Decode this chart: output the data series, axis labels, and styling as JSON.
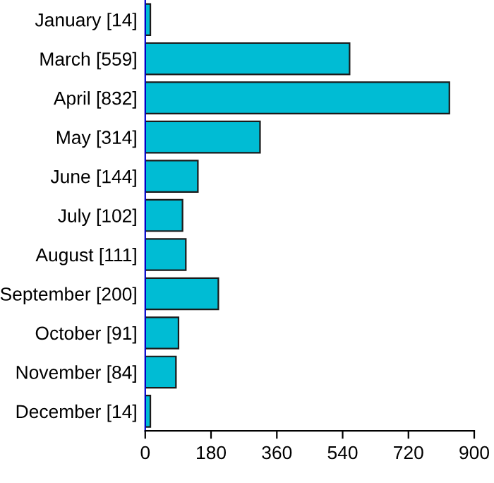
{
  "chart_data": {
    "type": "bar",
    "orientation": "horizontal",
    "categories": [
      "January [14]",
      "March [559]",
      "April [832]",
      "May [314]",
      "June [144]",
      "July [102]",
      "August [111]",
      "September [200]",
      "October [91]",
      "November [84]",
      "December [14]"
    ],
    "values": [
      14,
      559,
      832,
      314,
      144,
      102,
      111,
      200,
      91,
      84,
      14
    ],
    "color": "#00bcd4",
    "xlim": [
      0,
      900
    ],
    "xticks": [
      0,
      180,
      360,
      540,
      720,
      900
    ],
    "grid": false
  }
}
